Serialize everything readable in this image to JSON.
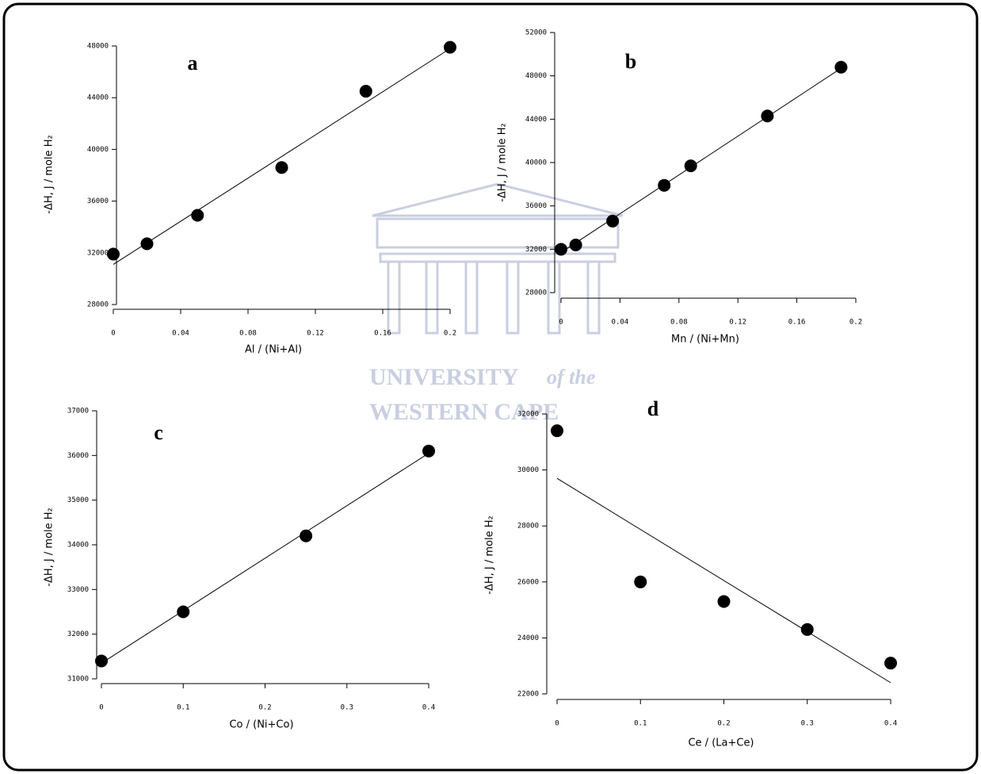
{
  "chart_data": [
    {
      "type": "scatter",
      "label": "a",
      "x_label": "Al / (Ni+Al)",
      "y_label": "-ΔH, J / mole H₂",
      "color": "#000000",
      "x": [
        0,
        0.02,
        0.05,
        0.1,
        0.15,
        0.2
      ],
      "values": [
        31900,
        32700,
        34900,
        38600,
        44500,
        47900
      ],
      "fit_line": {
        "x": [
          0,
          0.2
        ],
        "y": [
          31100,
          47800
        ]
      },
      "xlim": [
        0,
        0.2
      ],
      "ylim": [
        28000,
        48000
      ],
      "xticks": [
        0,
        0.04,
        0.08,
        0.12,
        0.16,
        0.2
      ],
      "yticks": [
        28000,
        32000,
        36000,
        40000,
        44000,
        48000
      ]
    },
    {
      "type": "scatter",
      "label": "b",
      "x_label": "Mn / (Ni+Mn)",
      "y_label": "-ΔH, J / mole H₂",
      "color": "#000000",
      "x": [
        0,
        0.01,
        0.035,
        0.07,
        0.088,
        0.14,
        0.19
      ],
      "values": [
        32000,
        32400,
        34600,
        37900,
        39700,
        44300,
        48800
      ],
      "fit_line": {
        "x": [
          0,
          0.19
        ],
        "y": [
          31700,
          48700
        ]
      },
      "xlim": [
        0,
        0.2
      ],
      "ylim": [
        28000,
        52000
      ],
      "xticks": [
        0,
        0.04,
        0.08,
        0.12,
        0.16,
        0.2
      ],
      "yticks": [
        28000,
        32000,
        36000,
        40000,
        44000,
        48000,
        52000
      ]
    },
    {
      "type": "scatter",
      "label": "c",
      "x_label": "Co / (Ni+Co)",
      "y_label": "-ΔH, J / mole H₂",
      "color": "#000000",
      "x": [
        0,
        0.1,
        0.25,
        0.4
      ],
      "values": [
        31400,
        32500,
        34200,
        36100
      ],
      "fit_line": {
        "x": [
          0,
          0.4
        ],
        "y": [
          31350,
          36050
        ]
      },
      "xlim": [
        0,
        0.4
      ],
      "ylim": [
        31000,
        37000
      ],
      "xticks": [
        0,
        0.1,
        0.2,
        0.3,
        0.4
      ],
      "yticks": [
        31000,
        32000,
        33000,
        34000,
        35000,
        36000,
        37000
      ]
    },
    {
      "type": "scatter",
      "label": "d",
      "x_label": "Ce / (La+Ce)",
      "y_label": "-ΔH, J / mole H₂",
      "color": "#000000",
      "x": [
        0,
        0.1,
        0.2,
        0.3,
        0.4
      ],
      "values": [
        31400,
        26000,
        25300,
        24300,
        23100
      ],
      "fit_line": {
        "x": [
          0,
          0.4
        ],
        "y": [
          29700,
          22400
        ]
      },
      "xlim": [
        0,
        0.4
      ],
      "ylim": [
        22000,
        32000
      ],
      "xticks": [
        0,
        0.1,
        0.2,
        0.3,
        0.4
      ],
      "yticks": [
        22000,
        24000,
        26000,
        28000,
        30000,
        32000
      ]
    }
  ],
  "watermark": {
    "university": "UNIVERSITY",
    "of_the": "of the",
    "western_cape": "WESTERN CAPE"
  }
}
